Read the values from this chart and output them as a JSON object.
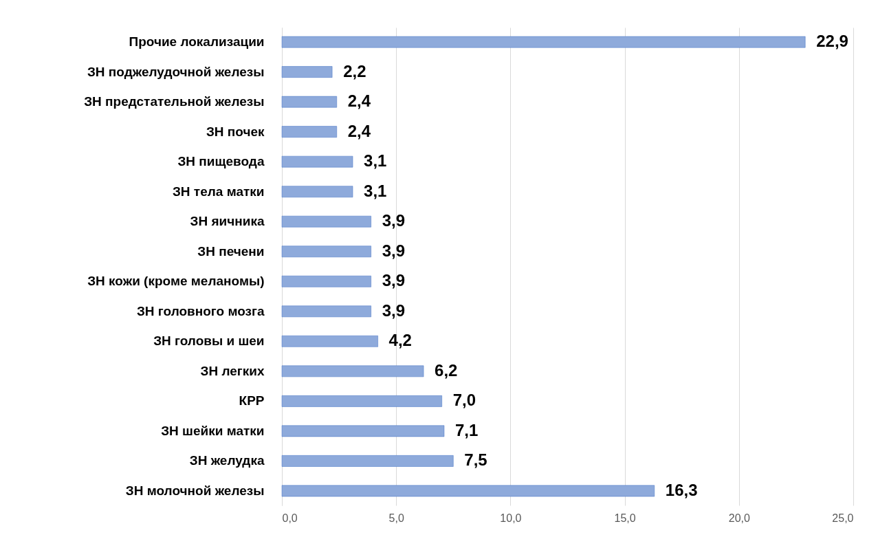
{
  "chart_data": {
    "type": "bar",
    "orientation": "horizontal",
    "categories": [
      "Прочие локализации",
      "ЗН поджелудочной железы",
      "ЗН предстательной железы",
      "ЗН почек",
      "ЗН пищевода",
      "ЗН тела матки",
      "ЗН яичника ",
      "ЗН печени",
      "ЗН кожи (кроме меланомы)",
      "ЗН головного мозга",
      "ЗН головы и шеи",
      "ЗН легких",
      "КРР",
      "ЗН шейки матки",
      "ЗН желудка",
      "ЗН молочной железы"
    ],
    "values": [
      22.9,
      2.2,
      2.4,
      2.4,
      3.1,
      3.1,
      3.9,
      3.9,
      3.9,
      3.9,
      4.2,
      6.2,
      7.0,
      7.1,
      7.5,
      16.3
    ],
    "value_labels": [
      "22,9",
      "2,2",
      "2,4",
      "2,4",
      "3,1",
      "3,1",
      "3,9",
      "3,9",
      "3,9",
      "3,9",
      "4,2",
      "6,2",
      "7,0",
      "7,1",
      "7,5",
      "16,3"
    ],
    "color": "#8eaadb",
    "xlim": [
      0,
      25
    ],
    "xticks": [
      {
        "value": 0,
        "label": "0,0"
      },
      {
        "value": 5,
        "label": "5,0"
      },
      {
        "value": 10,
        "label": "10,0"
      },
      {
        "value": 15,
        "label": "15,0"
      },
      {
        "value": 20,
        "label": "20,0"
      },
      {
        "value": 25,
        "label": "25,0"
      }
    ],
    "grid": "x"
  }
}
